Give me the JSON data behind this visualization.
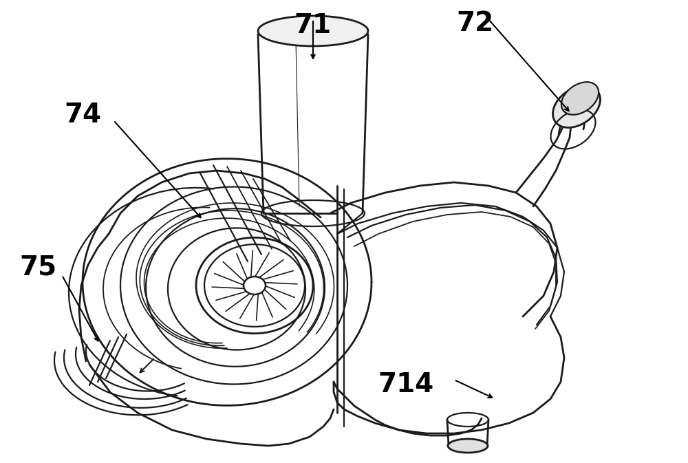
{
  "bg_color": "#ffffff",
  "lc": "#1a1a1a",
  "lw": 1.6,
  "tlw": 2.0,
  "fig_w": 10.0,
  "fig_h": 6.73,
  "label_fs": 28
}
